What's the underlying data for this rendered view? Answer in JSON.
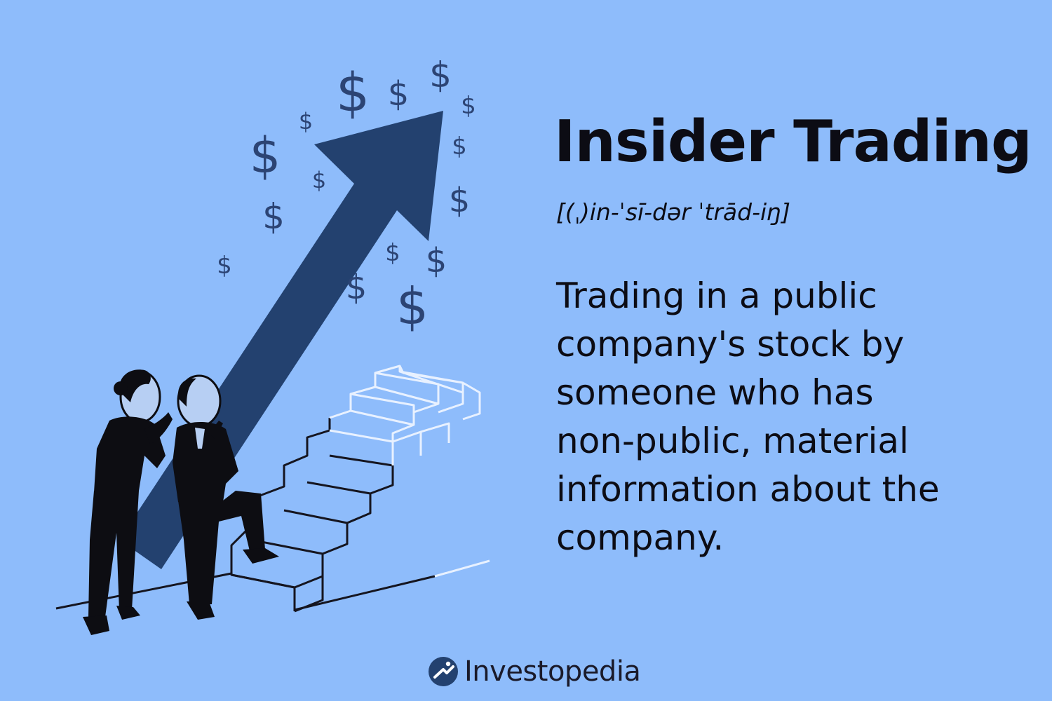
{
  "colors": {
    "background": "#8ebcfb",
    "arrow": "#23416f",
    "dollar_signs": "#2c4474",
    "text": "#0c0c14",
    "stairs_stroke": "#15151f",
    "stairs_highlight": "#e8f1ff",
    "figures": "#0d0d12",
    "skin": "#b7cff3"
  },
  "term": {
    "title": "Insider Trading",
    "pronunciation": "[(ˌ)in-ˈsī-dər ˈtrād-iŋ]"
  },
  "definition": {
    "lines": [
      "Trading in a public",
      "company's stock by",
      "someone who has",
      "non-public, material",
      "information about the",
      "company."
    ]
  },
  "brand": {
    "name": "Investopedia",
    "logo_icon": "investopedia-logo-icon"
  },
  "illustration": {
    "arrow_icon": "upward-arrow-icon",
    "dollar_icon": "dollar-sign-icon",
    "stairs_icon": "staircase-icon",
    "people": [
      "whispering-woman-figure",
      "listening-man-figure"
    ],
    "dollar_glyph": "$"
  }
}
